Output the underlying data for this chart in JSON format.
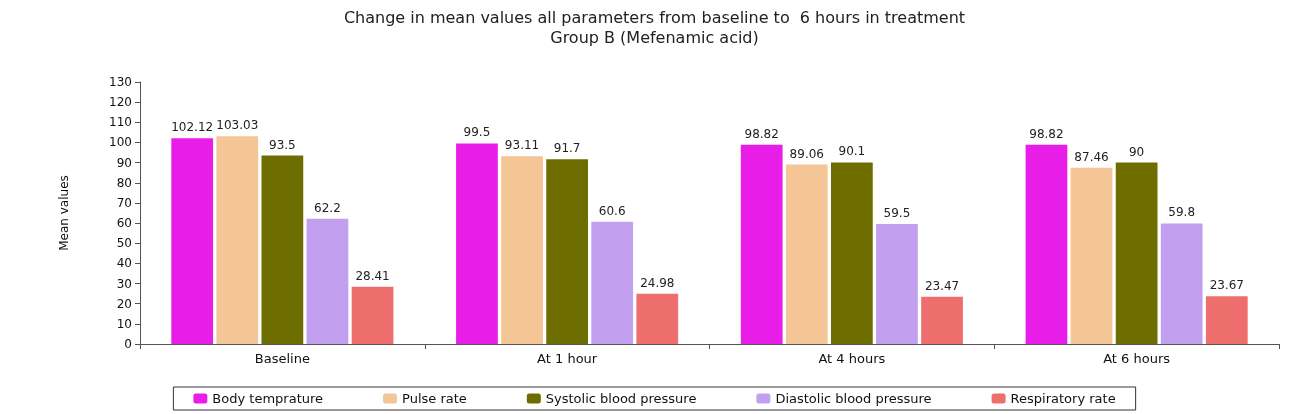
{
  "chart_data": {
    "type": "bar",
    "title": "Change in mean values all parameters from baseline to  6 hours in treatment",
    "subtitle": "Group B (Mefenamic acid)",
    "ylabel": "Mean values",
    "categories": [
      "Baseline",
      "At 1 hour",
      "At 4 hours",
      "At 6 hours"
    ],
    "series": [
      {
        "name": "Body temprature",
        "color": "#e81ee8",
        "values": [
          102.12,
          99.5,
          98.82,
          98.82
        ]
      },
      {
        "name": "Pulse rate",
        "color": "#f5c695",
        "values": [
          103.03,
          93.11,
          89.06,
          87.46
        ]
      },
      {
        "name": "Systolic blood pressure",
        "color": "#6e6e00",
        "values": [
          93.5,
          91.7,
          90.1,
          90
        ]
      },
      {
        "name": "Diastolic blood pressure",
        "color": "#c39ff0",
        "values": [
          62.2,
          60.6,
          59.5,
          59.8
        ]
      },
      {
        "name": "Respiratory rate",
        "color": "#ee6e6e",
        "values": [
          28.41,
          24.98,
          23.47,
          23.67
        ]
      }
    ],
    "ylim": [
      0,
      130
    ],
    "yticks": [
      0,
      10,
      20,
      30,
      40,
      50,
      60,
      70,
      80,
      90,
      100,
      110,
      120,
      130
    ],
    "grid": false,
    "legend": "bottom",
    "data_labels": true
  }
}
